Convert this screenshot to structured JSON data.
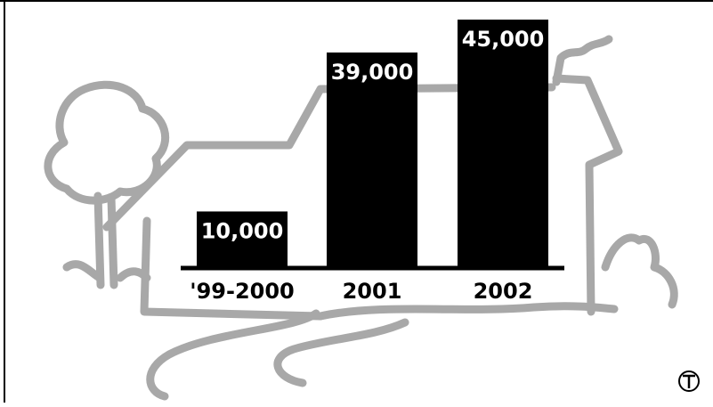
{
  "chart_data": {
    "type": "bar",
    "categories": [
      "'99-2000",
      "2001",
      "2002"
    ],
    "values": [
      10000,
      39000,
      45000
    ],
    "value_labels": [
      "10,000",
      "39,000",
      "45,000"
    ],
    "title": "",
    "xlabel": "",
    "ylabel": "",
    "ylim": [
      0,
      45000
    ],
    "grid": false,
    "legend": "none",
    "colors": {
      "bar": "#000000",
      "bar_label": "#ffffff",
      "axis": "#000000",
      "illustration": "#a8a8a8"
    }
  },
  "icons": {
    "corner_logo": "T-circle-logo",
    "illustration": "house-and-tree-sketch"
  }
}
